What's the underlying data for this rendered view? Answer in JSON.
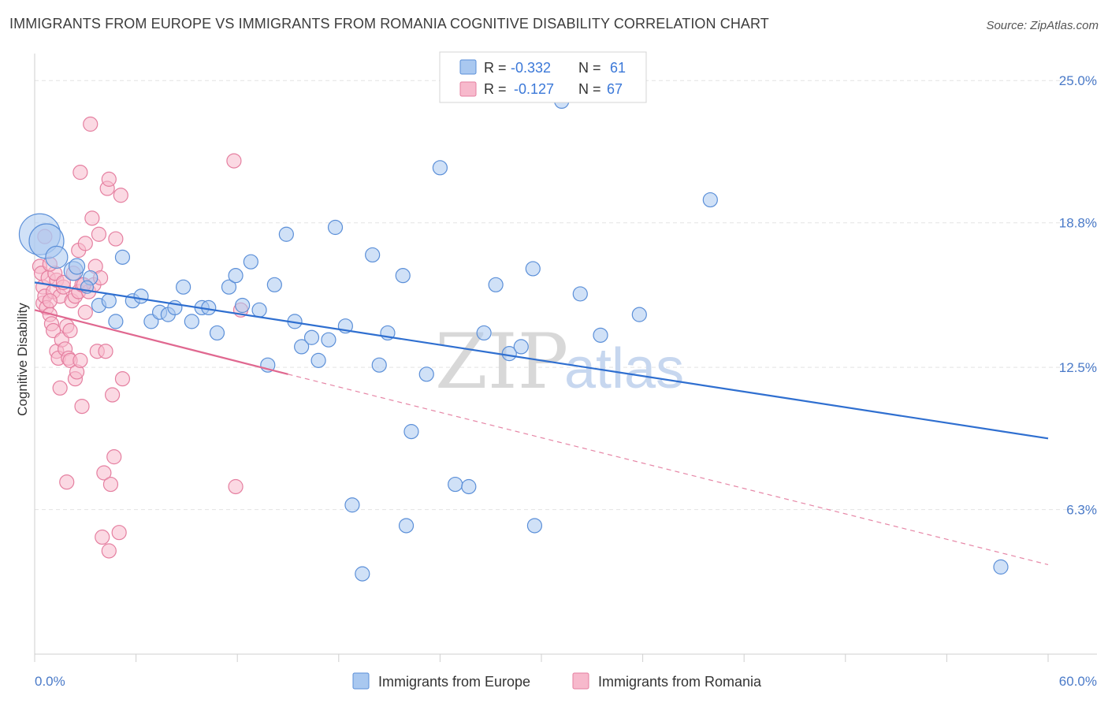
{
  "title": "IMMIGRANTS FROM EUROPE VS IMMIGRANTS FROM ROMANIA COGNITIVE DISABILITY CORRELATION CHART",
  "source": "Source: ZipAtlas.com",
  "watermark": {
    "zip": "ZIP",
    "atlas": "atlas"
  },
  "colors": {
    "europe_fill": "#a9c8f0",
    "europe_stroke": "#5b8fd8",
    "europe_line": "#2f6fd0",
    "romania_fill": "#f7b9cc",
    "romania_stroke": "#e57fa0",
    "romania_line": "#e06890",
    "value_text": "#3b78d8",
    "grid": "#e3e3e3"
  },
  "stats_box": {
    "rows": [
      {
        "r_label": "R =",
        "r_value": "-0.332",
        "n_label": "N =",
        "n_value": "61"
      },
      {
        "r_label": "R =",
        "r_value": "-0.127",
        "n_label": "N =",
        "n_value": "67"
      }
    ]
  },
  "chart_data": {
    "type": "scatter",
    "ylabel": "Cognitive Disability",
    "xlim": [
      0,
      60
    ],
    "ylim": [
      0,
      25.9
    ],
    "x_tick_labels": {
      "min": "0.0%",
      "max": "60.0%"
    },
    "y_ticks": [
      {
        "value": 25.0,
        "label": "25.0%"
      },
      {
        "value": 18.8,
        "label": "18.8%"
      },
      {
        "value": 12.5,
        "label": "12.5%"
      },
      {
        "value": 6.3,
        "label": "6.3%"
      }
    ],
    "grid": true,
    "legend_position": "bottom-center",
    "series": [
      {
        "name": "Immigrants from Europe",
        "trend": {
          "x": [
            0,
            60
          ],
          "y": [
            16.2,
            9.4
          ],
          "dashed_to": null
        },
        "points": [
          [
            0.3,
            18.3,
            26
          ],
          [
            0.7,
            18.0,
            22
          ],
          [
            1.3,
            17.3,
            14
          ],
          [
            2.3,
            16.7,
            12
          ],
          [
            2.5,
            16.9,
            10
          ],
          [
            3.3,
            16.4,
            9
          ],
          [
            3.1,
            16.0,
            8
          ],
          [
            3.8,
            15.2,
            9
          ],
          [
            4.4,
            15.4,
            9
          ],
          [
            4.8,
            14.5,
            9
          ],
          [
            5.2,
            17.3,
            9
          ],
          [
            5.8,
            15.4,
            9
          ],
          [
            6.3,
            15.6,
            9
          ],
          [
            6.9,
            14.5,
            9
          ],
          [
            7.4,
            14.9,
            9
          ],
          [
            7.9,
            14.8,
            9
          ],
          [
            8.3,
            15.1,
            9
          ],
          [
            8.8,
            16.0,
            9
          ],
          [
            9.3,
            14.5,
            9
          ],
          [
            9.9,
            15.1,
            9
          ],
          [
            10.3,
            15.1,
            9
          ],
          [
            10.8,
            14.0,
            9
          ],
          [
            11.5,
            16.0,
            9
          ],
          [
            11.9,
            16.5,
            9
          ],
          [
            12.3,
            15.2,
            9
          ],
          [
            12.8,
            17.1,
            9
          ],
          [
            13.3,
            15.0,
            9
          ],
          [
            13.8,
            12.6,
            9
          ],
          [
            14.2,
            16.1,
            9
          ],
          [
            14.9,
            18.3,
            9
          ],
          [
            15.4,
            14.5,
            9
          ],
          [
            15.8,
            13.4,
            9
          ],
          [
            16.4,
            13.8,
            9
          ],
          [
            16.8,
            12.8,
            9
          ],
          [
            17.4,
            13.7,
            9
          ],
          [
            17.8,
            18.6,
            9
          ],
          [
            18.4,
            14.3,
            9
          ],
          [
            18.8,
            6.5,
            9
          ],
          [
            19.4,
            3.5,
            9
          ],
          [
            20.0,
            17.4,
            9
          ],
          [
            20.4,
            12.6,
            9
          ],
          [
            20.9,
            14.0,
            9
          ],
          [
            21.8,
            16.5,
            9
          ],
          [
            22.3,
            9.7,
            9
          ],
          [
            23.2,
            12.2,
            9
          ],
          [
            24.0,
            21.2,
            9
          ],
          [
            24.9,
            7.4,
            9
          ],
          [
            25.7,
            7.3,
            9
          ],
          [
            26.6,
            14.0,
            9
          ],
          [
            27.3,
            16.1,
            9
          ],
          [
            28.1,
            13.1,
            9
          ],
          [
            28.8,
            13.4,
            9
          ],
          [
            29.5,
            16.8,
            9
          ],
          [
            29.6,
            5.6,
            9
          ],
          [
            22.0,
            5.6,
            9
          ],
          [
            31.2,
            24.1,
            9
          ],
          [
            32.3,
            15.7,
            9
          ],
          [
            33.5,
            13.9,
            9
          ],
          [
            35.8,
            14.8,
            9
          ],
          [
            40.0,
            19.8,
            9
          ],
          [
            57.2,
            3.8,
            9
          ]
        ]
      },
      {
        "name": "Immigrants from Romania",
        "trend": {
          "x": [
            0,
            15.0
          ],
          "y": [
            15.0,
            12.2
          ],
          "dashed_to": [
            60,
            3.9
          ]
        },
        "points": [
          [
            0.3,
            16.9,
            9
          ],
          [
            0.4,
            16.6,
            9
          ],
          [
            0.5,
            16.0,
            9
          ],
          [
            0.5,
            15.3,
            9
          ],
          [
            0.6,
            15.6,
            9
          ],
          [
            0.7,
            15.1,
            9
          ],
          [
            0.8,
            16.4,
            9
          ],
          [
            0.9,
            14.8,
            9
          ],
          [
            1.0,
            14.4,
            9
          ],
          [
            1.1,
            14.1,
            9
          ],
          [
            1.1,
            15.8,
            9
          ],
          [
            1.3,
            16.3,
            9
          ],
          [
            1.3,
            13.2,
            9
          ],
          [
            1.4,
            12.9,
            9
          ],
          [
            1.5,
            15.6,
            9
          ],
          [
            1.5,
            11.6,
            9
          ],
          [
            1.6,
            13.7,
            9
          ],
          [
            1.7,
            16.0,
            9
          ],
          [
            1.8,
            13.3,
            9
          ],
          [
            1.9,
            14.3,
            9
          ],
          [
            1.9,
            7.5,
            9
          ],
          [
            2.0,
            12.9,
            9
          ],
          [
            2.1,
            14.1,
            9
          ],
          [
            2.1,
            12.8,
            9
          ],
          [
            2.2,
            15.4,
            9
          ],
          [
            2.3,
            16.6,
            9
          ],
          [
            2.4,
            15.6,
            9
          ],
          [
            2.4,
            12.0,
            9
          ],
          [
            2.5,
            12.3,
            9
          ],
          [
            2.6,
            17.6,
            9
          ],
          [
            2.6,
            15.8,
            9
          ],
          [
            2.7,
            12.8,
            9
          ],
          [
            2.7,
            21.0,
            9
          ],
          [
            2.8,
            16.1,
            9
          ],
          [
            2.8,
            10.8,
            9
          ],
          [
            3.0,
            14.9,
            9
          ],
          [
            3.0,
            17.9,
            9
          ],
          [
            3.2,
            15.8,
            9
          ],
          [
            3.3,
            23.1,
            9
          ],
          [
            3.4,
            19.0,
            9
          ],
          [
            3.5,
            16.1,
            9
          ],
          [
            3.6,
            16.9,
            9
          ],
          [
            3.7,
            13.2,
            9
          ],
          [
            3.8,
            18.3,
            9
          ],
          [
            3.9,
            16.4,
            9
          ],
          [
            4.0,
            5.1,
            9
          ],
          [
            4.1,
            7.9,
            9
          ],
          [
            4.2,
            13.2,
            9
          ],
          [
            4.3,
            20.3,
            9
          ],
          [
            4.4,
            4.5,
            9
          ],
          [
            4.4,
            20.7,
            9
          ],
          [
            4.5,
            7.4,
            9
          ],
          [
            4.6,
            11.3,
            9
          ],
          [
            4.7,
            8.6,
            9
          ],
          [
            4.8,
            18.1,
            9
          ],
          [
            5.0,
            5.3,
            9
          ],
          [
            5.1,
            20.0,
            9
          ],
          [
            5.2,
            12.0,
            9
          ],
          [
            11.8,
            21.5,
            9
          ],
          [
            11.9,
            7.3,
            9
          ],
          [
            12.2,
            15.0,
            9
          ],
          [
            0.9,
            15.4,
            9
          ],
          [
            1.2,
            16.6,
            9
          ],
          [
            1.7,
            16.2,
            9
          ],
          [
            2.9,
            16.1,
            9
          ],
          [
            0.6,
            18.2,
            9
          ],
          [
            0.9,
            17.0,
            9
          ]
        ]
      }
    ]
  }
}
